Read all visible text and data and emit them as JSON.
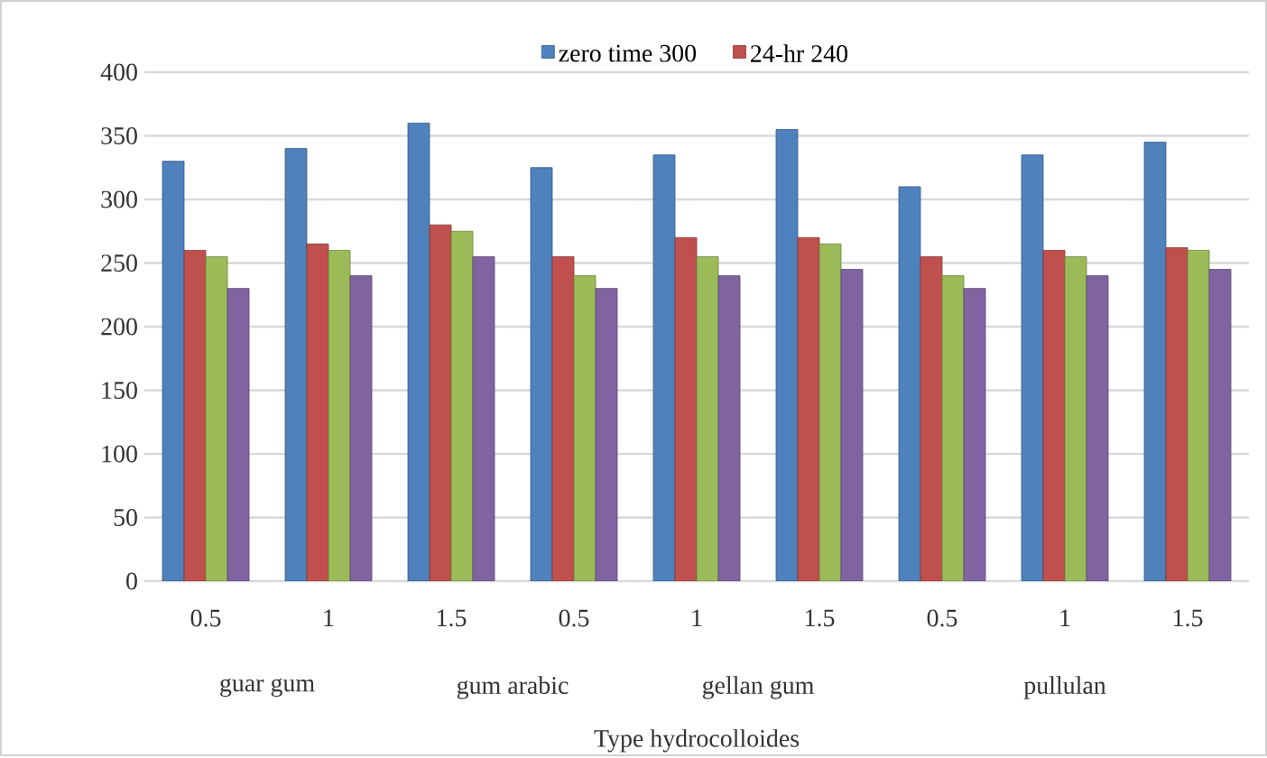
{
  "chart_data": {
    "type": "bar",
    "xlabel": "Type hydrocolloides",
    "categories": [
      "0.5",
      "1",
      "1.5",
      "0.5",
      "1",
      "1.5",
      "0.5",
      "1",
      "1.5"
    ],
    "series": [
      {
        "name": "zero time 300",
        "color": "#4f81bd",
        "values": [
          330,
          340,
          360,
          325,
          335,
          355,
          310,
          335,
          345
        ]
      },
      {
        "name": "24-hr 240",
        "color": "#c0504d",
        "values": [
          260,
          265,
          280,
          255,
          270,
          270,
          255,
          260,
          262
        ]
      },
      {
        "color": "#9bbb59",
        "values": [
          255,
          260,
          275,
          240,
          255,
          265,
          240,
          255,
          260
        ]
      },
      {
        "color": "#8064a2",
        "values": [
          230,
          240,
          255,
          230,
          240,
          245,
          230,
          240,
          245
        ]
      }
    ],
    "ylim": [
      0,
      400
    ],
    "yticks": [
      0,
      50,
      100,
      150,
      200,
      250,
      300,
      350,
      400
    ],
    "grid": "y",
    "legend": "top",
    "annotations": [
      "guar gum",
      "gum arabic",
      "gellan gum",
      "pullulan"
    ]
  }
}
